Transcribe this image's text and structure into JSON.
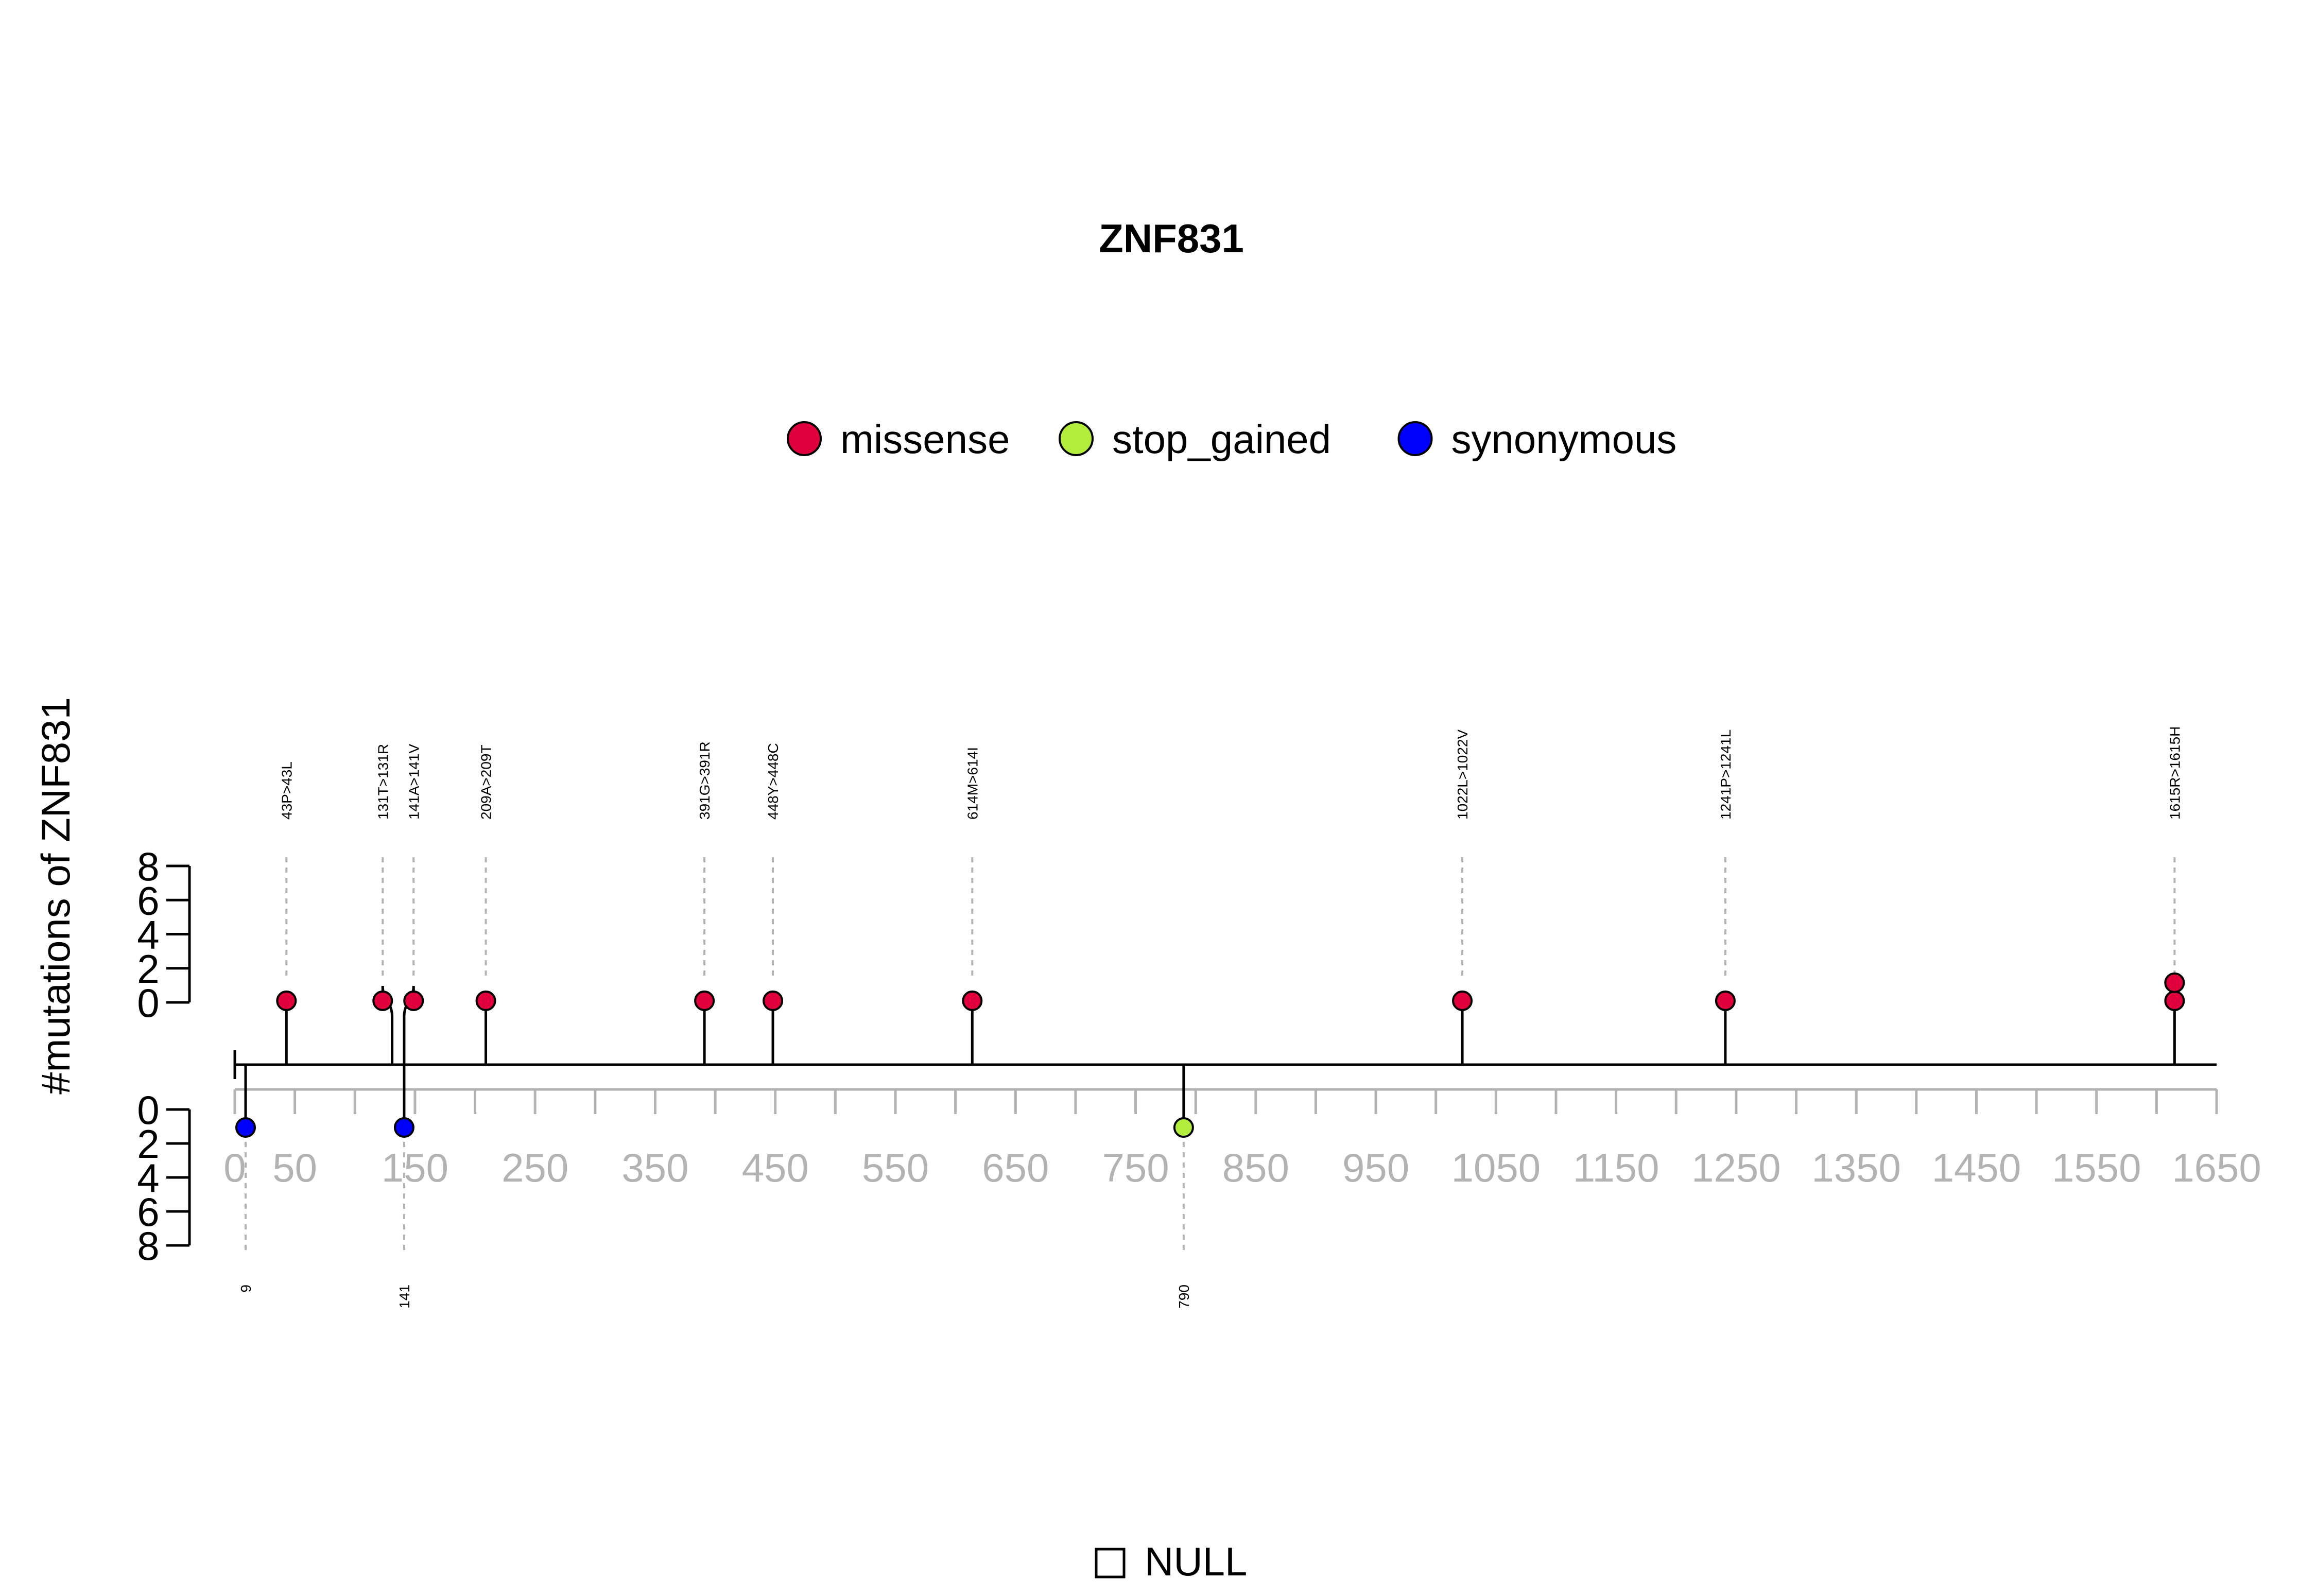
{
  "chart_data": {
    "type": "lollipop",
    "title": "ZNF831",
    "ylabel": "#mutations of ZNF831",
    "legend_position": "top",
    "legend": [
      {
        "name": "missense",
        "color": "#e0003c"
      },
      {
        "name": "stop_gained",
        "color": "#b2ec3c"
      },
      {
        "name": "synonymous",
        "color": "#0000ff"
      }
    ],
    "xlim": [
      0,
      1650
    ],
    "x_tick_labels": [
      "0",
      "50",
      "150",
      "250",
      "350",
      "450",
      "550",
      "650",
      "750",
      "850",
      "950",
      "1050",
      "1150",
      "1250",
      "1350",
      "1450",
      "1550",
      "1650"
    ],
    "y_top_tick_labels": [
      "0",
      "2",
      "4",
      "6",
      "8"
    ],
    "y_bottom_tick_labels": [
      "0",
      "2",
      "4",
      "6",
      "8"
    ],
    "ylim_top": [
      0,
      8
    ],
    "ylim_bottom": [
      0,
      8
    ],
    "top_mutations": [
      {
        "position": 43,
        "label": "43P>43L",
        "count": 1,
        "type": "missense"
      },
      {
        "position": 131,
        "label": "131T>131R",
        "count": 1,
        "type": "missense"
      },
      {
        "position": 141,
        "label": "141A>141V",
        "count": 1,
        "type": "missense"
      },
      {
        "position": 209,
        "label": "209A>209T",
        "count": 1,
        "type": "missense"
      },
      {
        "position": 391,
        "label": "391G>391R",
        "count": 1,
        "type": "missense"
      },
      {
        "position": 448,
        "label": "448Y>448C",
        "count": 1,
        "type": "missense"
      },
      {
        "position": 614,
        "label": "614M>614I",
        "count": 1,
        "type": "missense"
      },
      {
        "position": 1022,
        "label": "1022L>1022V",
        "count": 1,
        "type": "missense"
      },
      {
        "position": 1241,
        "label": "1241P>1241L",
        "count": 1,
        "type": "missense"
      },
      {
        "position": 1615,
        "label": "1615R>1615H",
        "count": 2,
        "type": "missense"
      }
    ],
    "bottom_mutations": [
      {
        "position": 9,
        "label": "9",
        "count": 1,
        "type": "synonymous"
      },
      {
        "position": 141,
        "label": "141",
        "count": 1,
        "type": "synonymous"
      },
      {
        "position": 790,
        "label": "790",
        "count": 1,
        "type": "stop_gained"
      }
    ],
    "domain_legend": "NULL"
  }
}
